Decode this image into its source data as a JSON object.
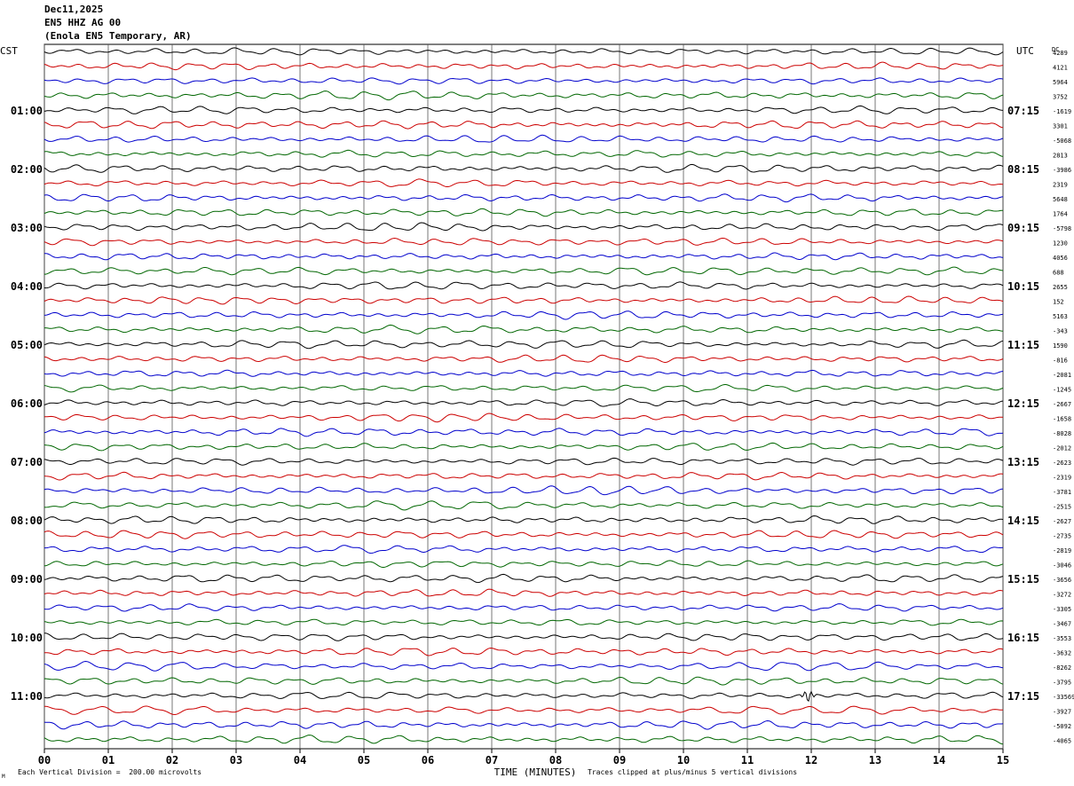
{
  "header": {
    "date": "Dec11,2025",
    "station": "EN5 HHZ AG 00",
    "location": "(Enola EN5 Temporary, AR)"
  },
  "footer": {
    "scale_note": "Each Vertical Division =  200.00 microvolts",
    "clip_note": "Traces clipped at plus/minus 5 vertical divisions",
    "corner_mark": "M"
  },
  "chart_data": {
    "type": "line",
    "title": "",
    "xlabel": "TIME (MINUTES)",
    "ylabel": "",
    "left_axis_title": "CST",
    "right_axis_title": "UTC",
    "dc_title": "DC",
    "xlim": [
      0,
      15
    ],
    "x_ticks": [
      "00",
      "01",
      "02",
      "03",
      "04",
      "05",
      "06",
      "07",
      "08",
      "09",
      "10",
      "11",
      "12",
      "13",
      "14",
      "15"
    ],
    "trace_colors": [
      "#000000",
      "#cc0000",
      "#0000cc",
      "#006600"
    ],
    "traces_per_hour": 4,
    "trace_count": 48,
    "left_labels": [
      {
        "row": 4,
        "text": "01:00"
      },
      {
        "row": 8,
        "text": "02:00"
      },
      {
        "row": 12,
        "text": "03:00"
      },
      {
        "row": 16,
        "text": "04:00"
      },
      {
        "row": 20,
        "text": "05:00"
      },
      {
        "row": 24,
        "text": "06:00"
      },
      {
        "row": 28,
        "text": "07:00"
      },
      {
        "row": 32,
        "text": "08:00"
      },
      {
        "row": 36,
        "text": "09:00"
      },
      {
        "row": 40,
        "text": "10:00"
      },
      {
        "row": 44,
        "text": "11:00"
      }
    ],
    "right_labels": [
      {
        "row": 4,
        "text": "07:15"
      },
      {
        "row": 8,
        "text": "08:15"
      },
      {
        "row": 12,
        "text": "09:15"
      },
      {
        "row": 16,
        "text": "10:15"
      },
      {
        "row": 20,
        "text": "11:15"
      },
      {
        "row": 24,
        "text": "12:15"
      },
      {
        "row": 28,
        "text": "13:15"
      },
      {
        "row": 32,
        "text": "14:15"
      },
      {
        "row": 36,
        "text": "15:15"
      },
      {
        "row": 40,
        "text": "16:15"
      },
      {
        "row": 44,
        "text": "17:15"
      }
    ],
    "dc_offsets": [
      "4289",
      "4121",
      "5964",
      "3752",
      "-1619",
      "3301",
      "-5068",
      "2813",
      "-3986",
      "2319",
      "5648",
      "1764",
      "-5798",
      "1230",
      "4056",
      "688",
      "2655",
      "152",
      "5163",
      "-343",
      "1590",
      "-816",
      "-2081",
      "-1245",
      "-2667",
      "-1658",
      "-8028",
      "-2012",
      "-2623",
      "-2319",
      "-3781",
      "-2515",
      "-2627",
      "-2735",
      "-2819",
      "-3046",
      "-3656",
      "-3272",
      "-3305",
      "-3467",
      "-3553",
      "-3632",
      "-8262",
      "-3795",
      "-33569",
      "-3927",
      "-5092",
      "-4065"
    ],
    "events": [
      {
        "trace": 44,
        "minute": 11.95,
        "amplitude": "clipped burst"
      }
    ]
  }
}
